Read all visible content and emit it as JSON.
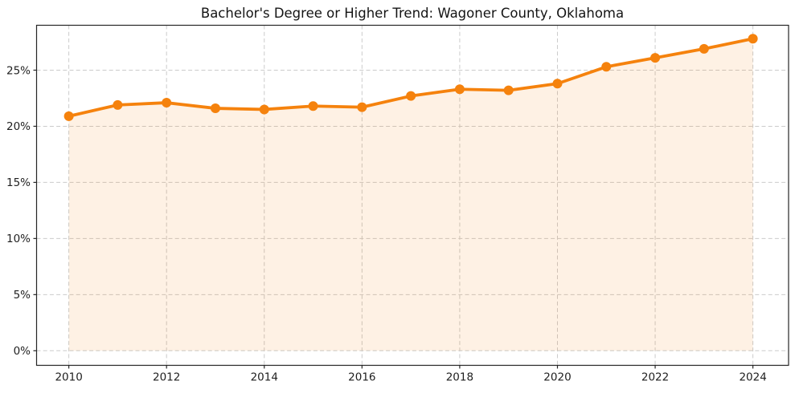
{
  "page": {
    "background": "#ffffff"
  },
  "chart_data": {
    "type": "area",
    "title": "Bachelor's Degree or Higher Trend: Wagoner County, Oklahoma",
    "x": [
      2010,
      2011,
      2012,
      2013,
      2014,
      2015,
      2016,
      2017,
      2018,
      2019,
      2020,
      2021,
      2022,
      2023,
      2024
    ],
    "values": [
      20.9,
      21.9,
      22.1,
      21.6,
      21.5,
      21.8,
      21.7,
      22.7,
      23.3,
      23.2,
      23.8,
      25.3,
      26.1,
      26.9,
      27.8
    ],
    "xlabel": "",
    "ylabel": "",
    "x_ticks": [
      2010,
      2012,
      2014,
      2016,
      2018,
      2020,
      2022,
      2024
    ],
    "x_tick_labels": [
      "2010",
      "2012",
      "2014",
      "2016",
      "2018",
      "2020",
      "2022",
      "2024"
    ],
    "y_ticks": [
      0,
      5,
      10,
      15,
      20,
      25
    ],
    "y_tick_labels": [
      "0%",
      "5%",
      "10%",
      "15%",
      "20%",
      "25%"
    ],
    "xlim": [
      2009.34,
      2024.73
    ],
    "ylim": [
      -1.3,
      29.0
    ],
    "grid": true,
    "legend": false,
    "marker": "circle",
    "colors": {
      "line": "#f5820d",
      "fill": "#f5820d",
      "fill_opacity": 0.11,
      "grid": "#cbcbcb",
      "spine": "#262626",
      "text": "#1f1f1f",
      "background": "#ffffff"
    }
  }
}
